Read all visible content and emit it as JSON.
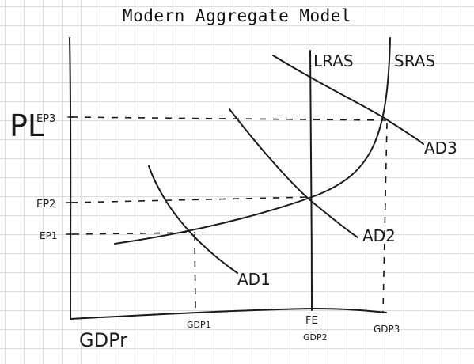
{
  "title": "Modern Aggregate Model",
  "labels": {
    "y_axis": "PL",
    "x_axis": "GDPr",
    "lras": "LRAS",
    "sras": "SRAS",
    "ad1": "AD1",
    "ad2": "AD2",
    "ad3": "AD3",
    "ep1": "EP1",
    "ep2": "EP2",
    "ep3": "EP3",
    "gdp1": "GDP1",
    "fe": "FE",
    "gdp2": "GDP2",
    "gdp3": "GDP3"
  }
}
